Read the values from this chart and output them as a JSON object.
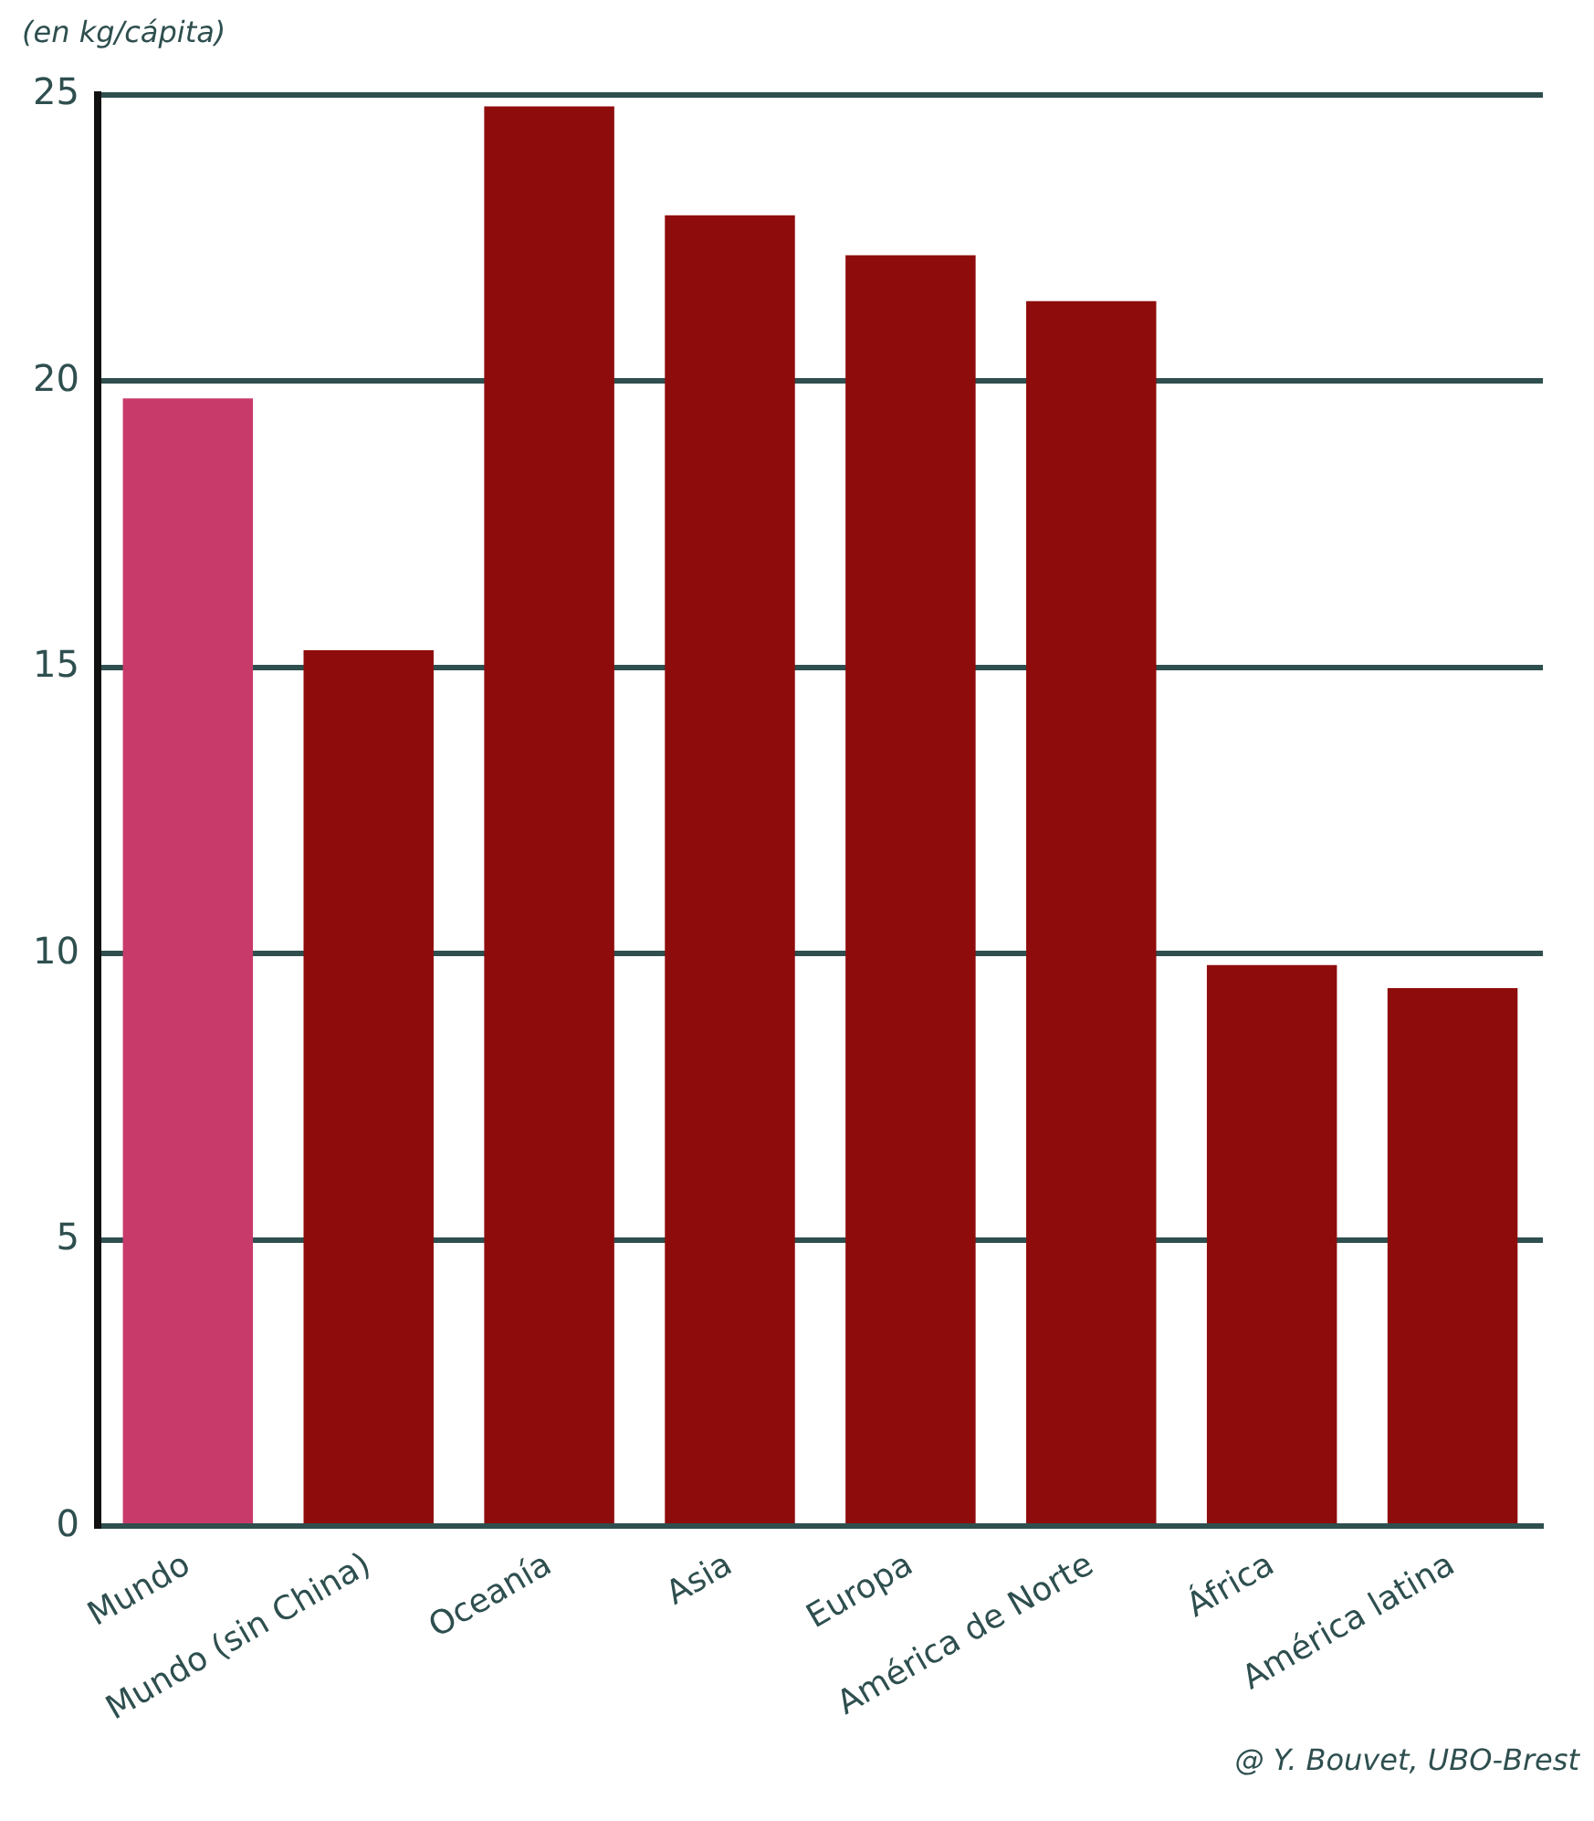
{
  "chart_data": {
    "type": "bar",
    "ylabel": "(en kg/cápita)",
    "categories": [
      "Mundo",
      "Mundo (sin China)",
      "Oceanía",
      "Asia",
      "Europa",
      "América de Norte",
      "África",
      "América latina"
    ],
    "values": [
      19.7,
      15.3,
      24.8,
      22.9,
      22.2,
      21.4,
      9.8,
      9.4
    ],
    "colors": [
      "#c83a6a",
      "#8f0c0c",
      "#8f0c0c",
      "#8f0c0c",
      "#8f0c0c",
      "#8f0c0c",
      "#8f0c0c",
      "#8f0c0c"
    ],
    "ylim": [
      0,
      25
    ],
    "yticks": [
      0,
      5,
      10,
      15,
      20,
      25
    ],
    "grid": "y",
    "legend": false,
    "annotations": [
      "@ Y. Bouvet, UBO-Brest"
    ]
  }
}
